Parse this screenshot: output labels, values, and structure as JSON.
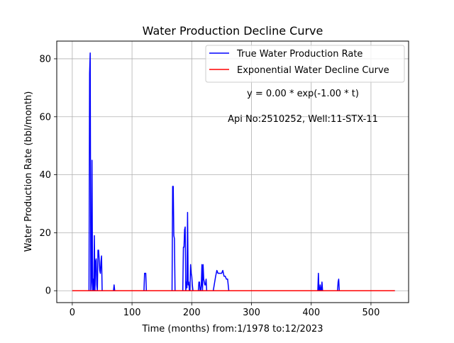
{
  "chart_data": {
    "type": "line",
    "title": "Water Production Decline Curve",
    "xlabel": "Time (months) from:1/1978 to:12/2023",
    "ylabel": "Water Production Rate (bbl/month)",
    "xlim": [
      -26,
      563
    ],
    "ylim": [
      -4.1,
      86.1
    ],
    "xticks": [
      0,
      100,
      200,
      300,
      400,
      500
    ],
    "yticks": [
      0,
      20,
      40,
      60,
      80
    ],
    "grid": true,
    "legend_position": "top-right",
    "annotations": [
      "y = 0.00 * exp(-1.00 * t)",
      "Api No:2510252, Well:11-STX-11"
    ],
    "series": [
      {
        "name": "True Water Production Rate",
        "color": "#0000ff",
        "x": [
          0,
          28,
          29,
          30,
          31,
          32,
          33,
          34,
          35,
          36,
          37,
          38,
          39,
          40,
          41,
          42,
          43,
          44,
          45,
          46,
          47,
          48,
          49,
          50,
          51,
          52,
          53,
          54,
          55,
          56,
          57,
          69,
          70,
          71,
          120,
          121,
          122,
          123,
          124,
          125,
          167,
          168,
          169,
          170,
          171,
          172,
          173,
          185,
          186,
          187,
          188,
          189,
          190,
          191,
          192,
          193,
          194,
          195,
          196,
          197,
          198,
          199,
          200,
          201,
          202,
          203,
          204,
          205,
          206,
          207,
          211,
          212,
          213,
          214,
          215,
          216,
          217,
          218,
          219,
          220,
          221,
          222,
          223,
          224,
          225,
          226,
          227,
          228,
          229,
          230,
          235,
          236,
          240,
          242,
          244,
          246,
          248,
          250,
          252,
          254,
          256,
          258,
          260,
          262,
          264,
          265,
          266,
          410,
          411,
          412,
          413,
          414,
          415,
          416,
          417,
          418,
          419,
          420,
          421,
          422,
          444,
          445,
          446,
          447,
          448,
          540
        ],
        "values": [
          0,
          0,
          75,
          82,
          0,
          3,
          45,
          0,
          4,
          0,
          19,
          0,
          10,
          11,
          2,
          0,
          14,
          14,
          11,
          7,
          6,
          10,
          12,
          0,
          0,
          0,
          0,
          0,
          0,
          0,
          0,
          0,
          2,
          0,
          0,
          6,
          6,
          6,
          0,
          0,
          0,
          36,
          36,
          19,
          18,
          0,
          0,
          0,
          15,
          15,
          21,
          22,
          0,
          3,
          1,
          27,
          2,
          3,
          0,
          0,
          9,
          6,
          5,
          2,
          0,
          0,
          0,
          0,
          0,
          0,
          0,
          3,
          3,
          0,
          0,
          2,
          9,
          0,
          9,
          4,
          3,
          2,
          2,
          4,
          0,
          0,
          0,
          0,
          0,
          0,
          0,
          0,
          5,
          7,
          6,
          6,
          6,
          6,
          7,
          5,
          5,
          4,
          4,
          0,
          0,
          0,
          0,
          0,
          0,
          6,
          0,
          0,
          2,
          0,
          0,
          3,
          0,
          0,
          0,
          0,
          0,
          3,
          4,
          0,
          0,
          0
        ]
      },
      {
        "name": "Exponential Water Decline Curve",
        "color": "#ff0000",
        "x": [
          0,
          540
        ],
        "values": [
          0,
          0
        ]
      }
    ]
  }
}
